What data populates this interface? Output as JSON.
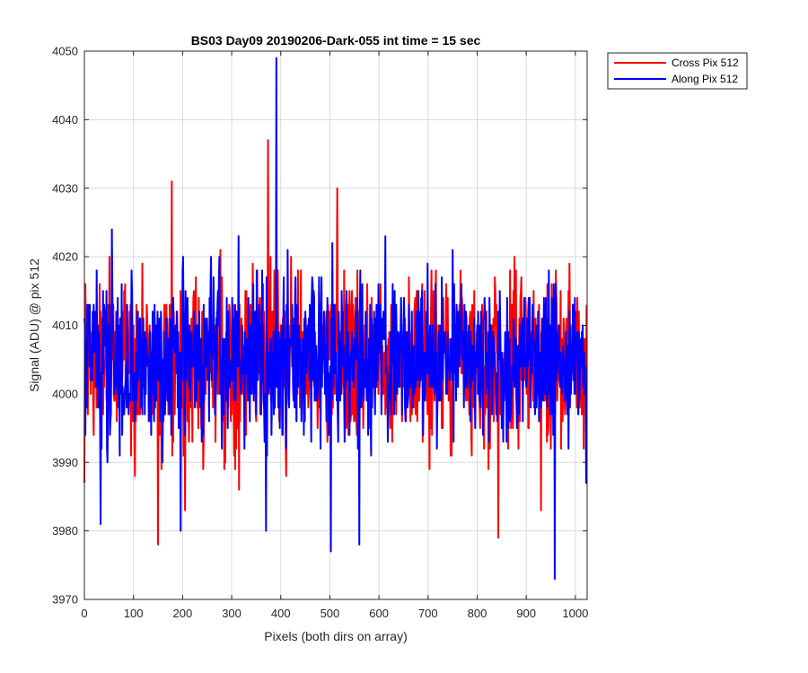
{
  "chart_data": {
    "type": "line",
    "title": "BS03 Day09 20190206-Dark-055 int time = 15 sec",
    "xlabel": "Pixels (both dirs on array)",
    "ylabel": "Signal (ADU) @ pix 512",
    "xlim": [
      0,
      1024
    ],
    "ylim": [
      3970,
      4050
    ],
    "xticks": [
      0,
      100,
      200,
      300,
      400,
      500,
      600,
      700,
      800,
      900,
      1000
    ],
    "yticks": [
      3970,
      3980,
      3990,
      4000,
      4010,
      4020,
      4030,
      4040,
      4050
    ],
    "grid": true,
    "legend_position": "outside top-right",
    "series": [
      {
        "name": "Cross Pix 512",
        "color": "#ff0000",
        "summary": {
          "n": 1024,
          "mean": 4005,
          "spread": 6,
          "min": 3978,
          "max": 4037
        },
        "extremes": [
          {
            "x": 0,
            "y": 3987
          },
          {
            "x": 150,
            "y": 3978
          },
          {
            "x": 178,
            "y": 4031
          },
          {
            "x": 205,
            "y": 3983
          },
          {
            "x": 374,
            "y": 4037
          },
          {
            "x": 515,
            "y": 4030
          },
          {
            "x": 843,
            "y": 3979
          },
          {
            "x": 930,
            "y": 3983
          }
        ]
      },
      {
        "name": "Along Pix 512",
        "color": "#0000ff",
        "summary": {
          "n": 1024,
          "mean": 4005,
          "spread": 6,
          "min": 3973,
          "max": 4049
        },
        "extremes": [
          {
            "x": 33,
            "y": 3981
          },
          {
            "x": 196,
            "y": 3980
          },
          {
            "x": 370,
            "y": 3980
          },
          {
            "x": 391,
            "y": 4049
          },
          {
            "x": 502,
            "y": 3977
          },
          {
            "x": 560,
            "y": 3978
          },
          {
            "x": 958,
            "y": 3973
          },
          {
            "x": 1022,
            "y": 3987
          }
        ]
      }
    ]
  }
}
